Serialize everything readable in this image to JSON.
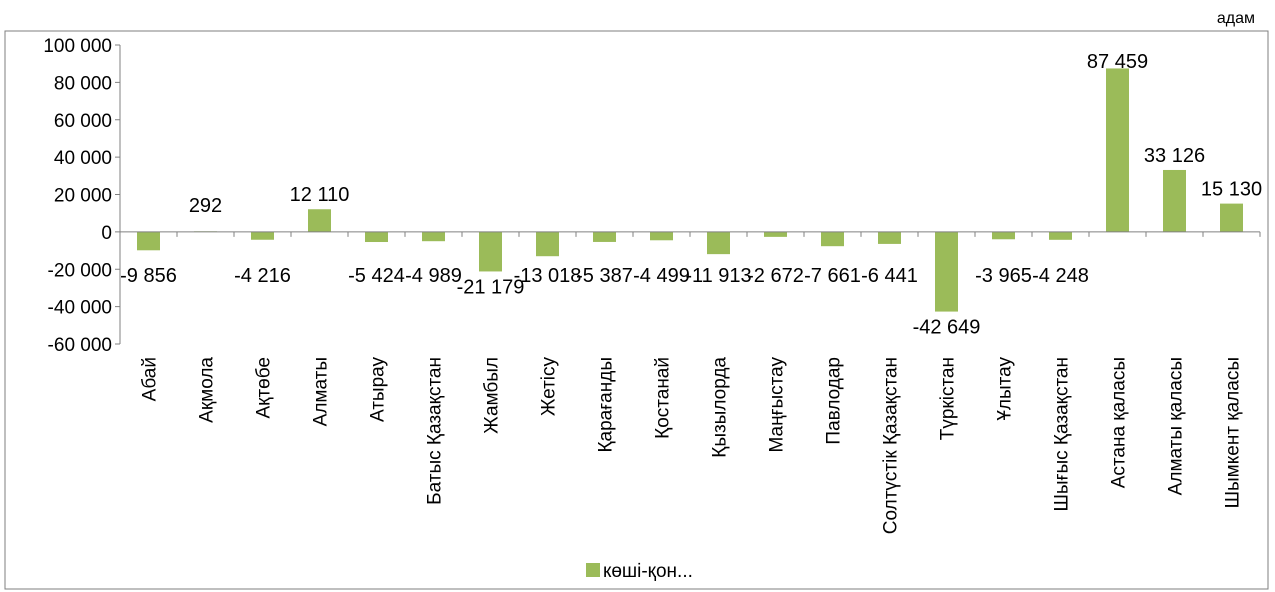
{
  "chart_data": {
    "type": "bar",
    "title": "",
    "unit_label": "адам",
    "categories": [
      "Абай",
      "Ақмола",
      "Ақтөбе",
      "Алматы",
      "Атырау",
      "Батыс Қазақстан",
      "Жамбыл",
      "Жетісу",
      "Қарағанды",
      "Қостанай",
      "Қызылорда",
      "Маңғыстау",
      "Павлодар",
      "Солтүстік Қазақстан",
      "Түркістан",
      "Ұлытау",
      "Шығыс Қазақстан",
      "Астана қаласы",
      "Алматы қаласы",
      "Шымкент қаласы"
    ],
    "series": [
      {
        "name": "көші-қон...",
        "color": "#9bbb59",
        "values": [
          -9856,
          292,
          -4216,
          12110,
          -5424,
          -4989,
          -21179,
          -13018,
          -5387,
          -4499,
          -11913,
          -2672,
          -7661,
          -6441,
          -42649,
          -3965,
          -4248,
          87459,
          33126,
          15130
        ],
        "value_labels": [
          "-9 856",
          "292",
          "-4 216",
          "12 110",
          "-5 424",
          "-4 989",
          "-21 179",
          "-13 018",
          "-5 387",
          "-4 499",
          "-11 913",
          "-2 672",
          "-7 661",
          "-6 441",
          "-42 649",
          "-3 965",
          "-4 248",
          "87 459",
          "33 126",
          "15 130"
        ]
      }
    ],
    "ylim": [
      -60000,
      100000
    ],
    "yticks": [
      100000,
      80000,
      60000,
      40000,
      20000,
      0,
      -20000,
      -40000,
      -60000
    ],
    "ytick_labels": [
      "100 000",
      "80 000",
      "60 000",
      "40 000",
      "20 000",
      "0",
      "-20 000",
      "-40 000",
      "-60 000"
    ],
    "grid": false,
    "legend_position": "bottom"
  }
}
